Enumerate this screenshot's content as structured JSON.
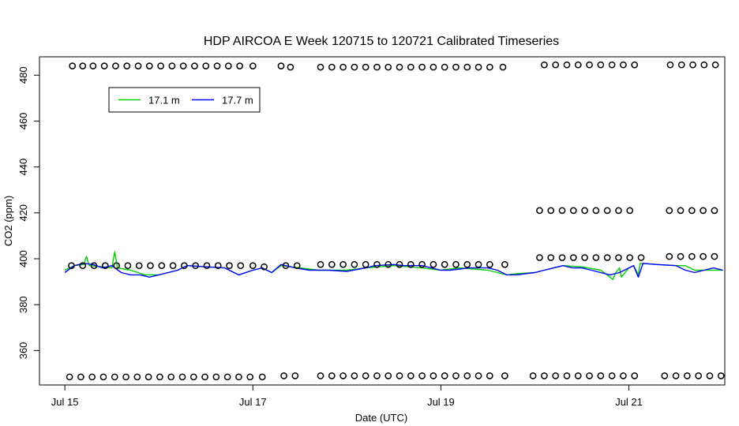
{
  "chart_data": {
    "type": "line",
    "title": "HDP AIRCOA E  Week 120715 to 120721  Calibrated Timeseries",
    "xlabel": "Date (UTC)",
    "ylabel": "CO2 (ppm)",
    "x_unit": "days (UTC) from Jul 15 00:00",
    "xlim": [
      -0.27,
      7.02
    ],
    "ylim": [
      345,
      488
    ],
    "x_ticks": [
      {
        "value": 0,
        "label": "Jul 15"
      },
      {
        "value": 2,
        "label": "Jul 17"
      },
      {
        "value": 4,
        "label": "Jul 19"
      },
      {
        "value": 6,
        "label": "Jul 21"
      }
    ],
    "y_ticks": [
      360,
      380,
      400,
      420,
      440,
      460,
      480
    ],
    "y_tick_labels": [
      "360",
      "380",
      "400",
      "420",
      "440",
      "460",
      "480"
    ],
    "legend": {
      "position": "top-left",
      "entries": [
        {
          "label": "17.1 m",
          "color": "#00cc00"
        },
        {
          "label": "17.7 m",
          "color": "#0000ff"
        }
      ]
    },
    "series": [
      {
        "name": "17.1 m",
        "color": "#00cc00",
        "points": [
          [
            0.0,
            395
          ],
          [
            0.1,
            397
          ],
          [
            0.2,
            397.5
          ],
          [
            0.23,
            401
          ],
          [
            0.26,
            397
          ],
          [
            0.4,
            396.5
          ],
          [
            0.5,
            396
          ],
          [
            0.53,
            403
          ],
          [
            0.56,
            396
          ],
          [
            0.7,
            395
          ],
          [
            0.85,
            393
          ],
          [
            1.0,
            393
          ],
          [
            1.1,
            394
          ],
          [
            1.2,
            395
          ],
          [
            1.3,
            397
          ],
          [
            1.5,
            396.5
          ],
          [
            1.7,
            396
          ],
          [
            1.8,
            394
          ],
          [
            1.85,
            393
          ],
          [
            2.0,
            395
          ],
          [
            2.1,
            396
          ],
          [
            2.2,
            394
          ],
          [
            2.3,
            397
          ],
          [
            2.5,
            396
          ],
          [
            2.7,
            395
          ],
          [
            3.0,
            395
          ],
          [
            3.2,
            396
          ],
          [
            3.5,
            397
          ],
          [
            3.8,
            396
          ],
          [
            4.0,
            395
          ],
          [
            4.2,
            396
          ],
          [
            4.5,
            395
          ],
          [
            4.7,
            393
          ],
          [
            4.8,
            393.5
          ],
          [
            5.0,
            394
          ],
          [
            5.2,
            396
          ],
          [
            5.3,
            397
          ],
          [
            5.5,
            396.5
          ],
          [
            5.7,
            395
          ],
          [
            5.8,
            392
          ],
          [
            5.83,
            391
          ],
          [
            5.86,
            394
          ],
          [
            5.9,
            396
          ],
          [
            5.92,
            392
          ],
          [
            6.0,
            396
          ],
          [
            6.05,
            397
          ],
          [
            6.1,
            393
          ],
          [
            6.12,
            398
          ],
          [
            6.3,
            397.5
          ],
          [
            6.5,
            397
          ],
          [
            6.6,
            397
          ],
          [
            6.7,
            395
          ],
          [
            6.8,
            395
          ],
          [
            6.9,
            395
          ],
          [
            7.0,
            395
          ]
        ]
      },
      {
        "name": "17.7 m",
        "color": "#0000ff",
        "points": [
          [
            0.0,
            394
          ],
          [
            0.1,
            397
          ],
          [
            0.2,
            398
          ],
          [
            0.3,
            397.5
          ],
          [
            0.4,
            396
          ],
          [
            0.5,
            397
          ],
          [
            0.6,
            394
          ],
          [
            0.7,
            393
          ],
          [
            0.8,
            393
          ],
          [
            0.9,
            392
          ],
          [
            1.0,
            393
          ],
          [
            1.1,
            394
          ],
          [
            1.2,
            395
          ],
          [
            1.3,
            397
          ],
          [
            1.5,
            396.5
          ],
          [
            1.7,
            396
          ],
          [
            1.8,
            394
          ],
          [
            1.85,
            393
          ],
          [
            2.0,
            395
          ],
          [
            2.1,
            396
          ],
          [
            2.2,
            394
          ],
          [
            2.3,
            397.5
          ],
          [
            2.45,
            396
          ],
          [
            2.6,
            395
          ],
          [
            2.8,
            395
          ],
          [
            3.0,
            394.5
          ],
          [
            3.2,
            396
          ],
          [
            3.3,
            397
          ],
          [
            3.5,
            397.5
          ],
          [
            3.6,
            397
          ],
          [
            3.7,
            397
          ],
          [
            3.8,
            397
          ],
          [
            4.0,
            395
          ],
          [
            4.1,
            395
          ],
          [
            4.2,
            395.5
          ],
          [
            4.3,
            396
          ],
          [
            4.4,
            396
          ],
          [
            4.5,
            396
          ],
          [
            4.6,
            395
          ],
          [
            4.7,
            393
          ],
          [
            4.8,
            393
          ],
          [
            5.0,
            394
          ],
          [
            5.1,
            395
          ],
          [
            5.2,
            396
          ],
          [
            5.3,
            397
          ],
          [
            5.4,
            396
          ],
          [
            5.5,
            396
          ],
          [
            5.6,
            395
          ],
          [
            5.7,
            394
          ],
          [
            5.8,
            393
          ],
          [
            5.9,
            394
          ],
          [
            6.0,
            396
          ],
          [
            6.05,
            397
          ],
          [
            6.1,
            392
          ],
          [
            6.15,
            398
          ],
          [
            6.3,
            397.5
          ],
          [
            6.5,
            397
          ],
          [
            6.6,
            395
          ],
          [
            6.7,
            394
          ],
          [
            6.8,
            395
          ],
          [
            6.9,
            396
          ],
          [
            7.0,
            395
          ]
        ]
      },
      {
        "name": "",
        "kind": "calibration-markers",
        "color": "#000000",
        "points": [
          [
            0.08,
            484
          ],
          [
            0.19,
            484
          ],
          [
            0.3,
            484
          ],
          [
            0.42,
            484
          ],
          [
            0.54,
            484
          ],
          [
            0.66,
            484
          ],
          [
            0.78,
            484
          ],
          [
            0.9,
            484
          ],
          [
            1.02,
            484
          ],
          [
            1.14,
            484
          ],
          [
            1.26,
            484
          ],
          [
            1.38,
            484
          ],
          [
            1.5,
            484
          ],
          [
            1.62,
            484
          ],
          [
            1.74,
            484
          ],
          [
            1.86,
            484
          ],
          [
            2.0,
            484
          ],
          [
            2.3,
            484
          ],
          [
            2.4,
            483.5
          ],
          [
            2.72,
            483.5
          ],
          [
            2.84,
            483.5
          ],
          [
            2.96,
            483.5
          ],
          [
            3.08,
            483.5
          ],
          [
            3.2,
            483.5
          ],
          [
            3.32,
            483.5
          ],
          [
            3.44,
            483.5
          ],
          [
            3.56,
            483.5
          ],
          [
            3.68,
            483.5
          ],
          [
            3.8,
            483.5
          ],
          [
            3.92,
            483.5
          ],
          [
            4.04,
            483.5
          ],
          [
            4.16,
            483.5
          ],
          [
            4.28,
            483.5
          ],
          [
            4.4,
            483.5
          ],
          [
            4.52,
            483.5
          ],
          [
            4.66,
            483.5
          ],
          [
            5.1,
            484.5
          ],
          [
            5.22,
            484.5
          ],
          [
            5.34,
            484.5
          ],
          [
            5.46,
            484.5
          ],
          [
            5.58,
            484.5
          ],
          [
            5.7,
            484.5
          ],
          [
            5.82,
            484.5
          ],
          [
            5.94,
            484.5
          ],
          [
            6.06,
            484.5
          ],
          [
            6.44,
            484.5
          ],
          [
            6.56,
            484.5
          ],
          [
            6.68,
            484.5
          ],
          [
            6.8,
            484.5
          ],
          [
            6.92,
            484.5
          ],
          [
            0.05,
            348.5
          ],
          [
            0.17,
            348.5
          ],
          [
            0.29,
            348.5
          ],
          [
            0.41,
            348.5
          ],
          [
            0.53,
            348.5
          ],
          [
            0.65,
            348.5
          ],
          [
            0.77,
            348.5
          ],
          [
            0.89,
            348.5
          ],
          [
            1.01,
            348.5
          ],
          [
            1.13,
            348.5
          ],
          [
            1.25,
            348.5
          ],
          [
            1.37,
            348.5
          ],
          [
            1.49,
            348.5
          ],
          [
            1.61,
            348.5
          ],
          [
            1.73,
            348.5
          ],
          [
            1.85,
            348.5
          ],
          [
            1.97,
            348.5
          ],
          [
            2.1,
            348.5
          ],
          [
            2.33,
            349
          ],
          [
            2.45,
            349
          ],
          [
            2.72,
            349
          ],
          [
            2.84,
            349
          ],
          [
            2.96,
            349
          ],
          [
            3.08,
            349
          ],
          [
            3.2,
            349
          ],
          [
            3.32,
            349
          ],
          [
            3.44,
            349
          ],
          [
            3.56,
            349
          ],
          [
            3.68,
            349
          ],
          [
            3.8,
            349
          ],
          [
            3.92,
            349
          ],
          [
            4.04,
            349
          ],
          [
            4.16,
            349
          ],
          [
            4.28,
            349
          ],
          [
            4.4,
            349
          ],
          [
            4.52,
            349
          ],
          [
            4.68,
            349
          ],
          [
            4.98,
            349
          ],
          [
            5.1,
            349
          ],
          [
            5.22,
            349
          ],
          [
            5.34,
            349
          ],
          [
            5.46,
            349
          ],
          [
            5.58,
            349
          ],
          [
            5.7,
            349
          ],
          [
            5.82,
            349
          ],
          [
            5.94,
            349
          ],
          [
            6.06,
            349
          ],
          [
            6.38,
            349
          ],
          [
            6.5,
            349
          ],
          [
            6.62,
            349
          ],
          [
            6.74,
            349
          ],
          [
            6.86,
            349
          ],
          [
            6.98,
            349
          ],
          [
            0.07,
            397
          ],
          [
            0.19,
            397
          ],
          [
            0.31,
            397
          ],
          [
            0.43,
            397
          ],
          [
            0.55,
            397
          ],
          [
            0.67,
            397
          ],
          [
            0.79,
            397
          ],
          [
            0.91,
            397
          ],
          [
            1.03,
            397
          ],
          [
            1.15,
            397
          ],
          [
            1.27,
            397
          ],
          [
            1.39,
            397
          ],
          [
            1.51,
            397
          ],
          [
            1.63,
            397
          ],
          [
            1.75,
            397
          ],
          [
            1.87,
            397
          ],
          [
            2.0,
            397
          ],
          [
            2.12,
            396.5
          ],
          [
            2.35,
            397
          ],
          [
            2.47,
            397
          ],
          [
            2.72,
            397.5
          ],
          [
            2.84,
            397.5
          ],
          [
            2.96,
            397.5
          ],
          [
            3.08,
            397.5
          ],
          [
            3.2,
            397.5
          ],
          [
            3.32,
            397.5
          ],
          [
            3.44,
            397.5
          ],
          [
            3.56,
            397.5
          ],
          [
            3.68,
            397.5
          ],
          [
            3.8,
            397.5
          ],
          [
            3.92,
            397.5
          ],
          [
            4.04,
            397.5
          ],
          [
            4.16,
            397.5
          ],
          [
            4.28,
            397.5
          ],
          [
            4.4,
            397.5
          ],
          [
            4.52,
            397.5
          ],
          [
            4.68,
            397.5
          ],
          [
            5.05,
            400.5
          ],
          [
            5.17,
            400.5
          ],
          [
            5.29,
            400.5
          ],
          [
            5.41,
            400.5
          ],
          [
            5.53,
            400.5
          ],
          [
            5.65,
            400.5
          ],
          [
            5.77,
            400.5
          ],
          [
            5.89,
            400.5
          ],
          [
            6.01,
            400.5
          ],
          [
            6.13,
            400.5
          ],
          [
            6.43,
            401
          ],
          [
            6.55,
            401
          ],
          [
            6.67,
            401
          ],
          [
            6.79,
            401
          ],
          [
            6.91,
            401
          ],
          [
            5.05,
            421
          ],
          [
            5.17,
            421
          ],
          [
            5.29,
            421
          ],
          [
            5.41,
            421
          ],
          [
            5.53,
            421
          ],
          [
            5.65,
            421
          ],
          [
            5.77,
            421
          ],
          [
            5.89,
            421
          ],
          [
            6.01,
            421
          ],
          [
            6.43,
            421
          ],
          [
            6.55,
            421
          ],
          [
            6.67,
            421
          ],
          [
            6.79,
            421
          ],
          [
            6.91,
            421
          ]
        ]
      }
    ]
  }
}
